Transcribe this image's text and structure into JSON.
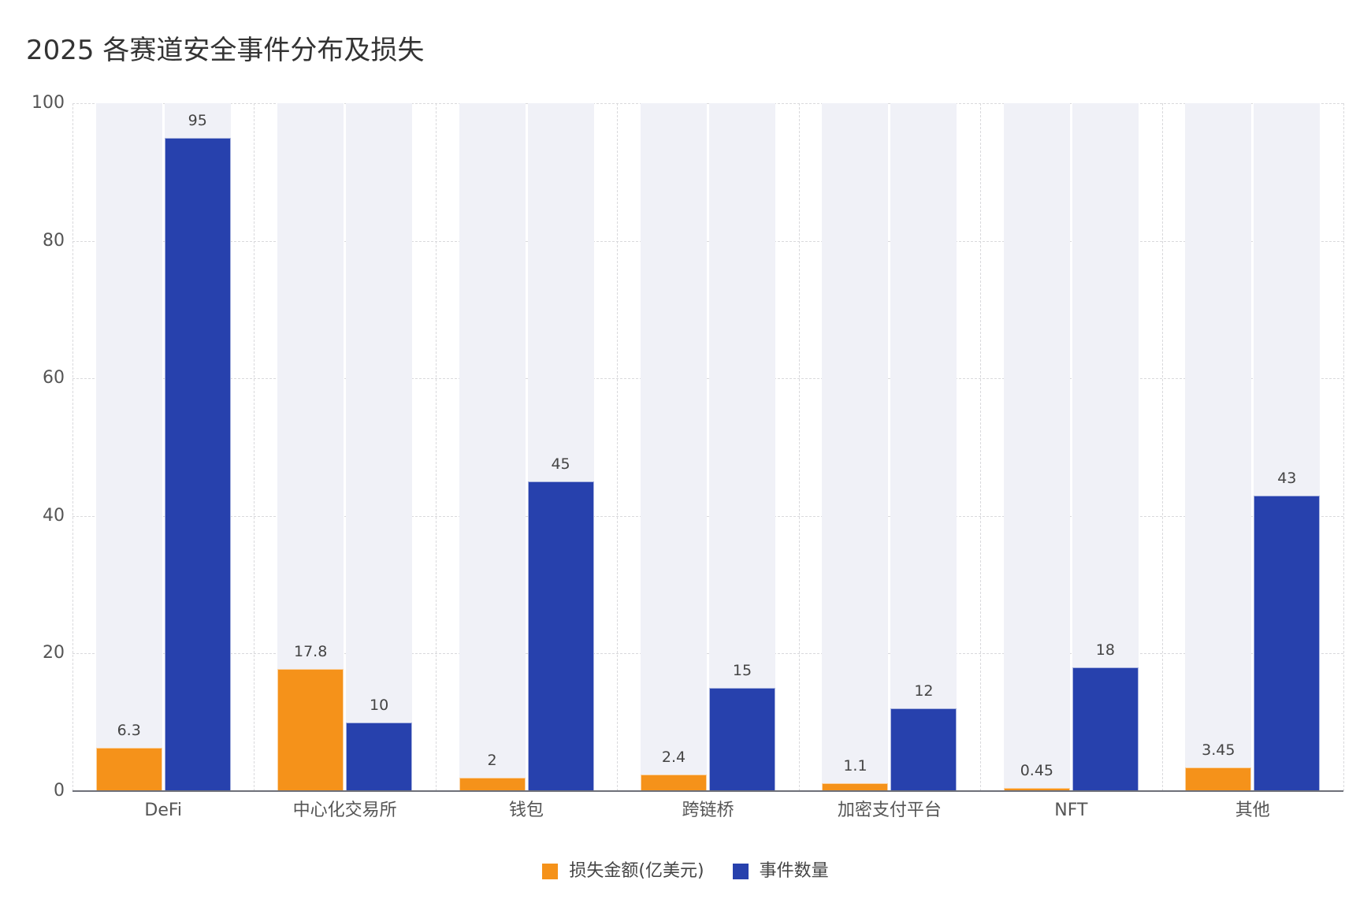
{
  "title": "2025 各赛道安全事件分布及损失",
  "colors": {
    "loss": "#f5921a",
    "count": "#2741ad",
    "track": "#f0f1f7",
    "grid": "#d9d9dc",
    "axis": "#6e7079"
  },
  "legend": [
    {
      "label": "损失金额(亿美元)",
      "color": "#f5921a"
    },
    {
      "label": "事件数量",
      "color": "#2741ad"
    }
  ],
  "chart_data": {
    "type": "bar",
    "title": "2025 各赛道安全事件分布及损失",
    "categories": [
      "DeFi",
      "中心化交易所",
      "钱包",
      "跨链桥",
      "加密支付平台",
      "NFT",
      "其他"
    ],
    "series": [
      {
        "name": "损失金额(亿美元)",
        "color": "#f5921a",
        "values": [
          6.3,
          17.8,
          2,
          2.4,
          1.1,
          0.45,
          3.45
        ],
        "labels": [
          "6.3",
          "17.8",
          "2",
          "2.4",
          "1.1",
          "0.45",
          "3.45"
        ]
      },
      {
        "name": "事件数量",
        "color": "#2741ad",
        "values": [
          95,
          10,
          45,
          15,
          12,
          18,
          43
        ],
        "labels": [
          "95",
          "10",
          "45",
          "15",
          "12",
          "18",
          "43"
        ]
      }
    ],
    "xlabel": "",
    "ylabel": "",
    "ylim": [
      0,
      100
    ],
    "yticks": [
      0,
      20,
      40,
      60,
      80,
      100
    ],
    "grid": true,
    "show_background_track": true,
    "legend_position": "bottom-center"
  }
}
